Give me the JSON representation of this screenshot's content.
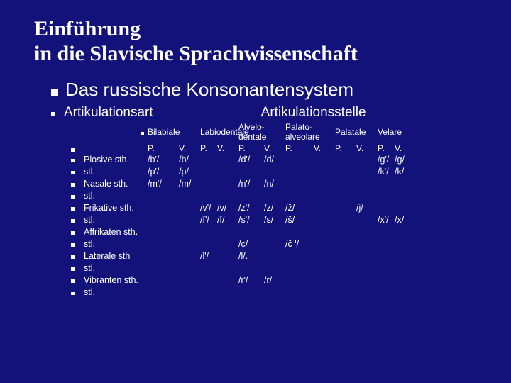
{
  "title_line1": "Einführung",
  "title_line2": "in die Slavische Sprachwissenschaft",
  "heading": "Das russische Konsonantensystem",
  "sub_label1": "Artikulationsart",
  "sub_label2": "Artikulationsstelle",
  "columns": {
    "bilabiale": "Bilabiale",
    "labiodentale": "Labiodentale",
    "alveodentale": "Alvelo-dentale",
    "palatoalveolare": "Palato-alveolare",
    "palatale": "Palatale",
    "velare": "Velare"
  },
  "pv": {
    "p": "P.",
    "v": "V."
  },
  "rows": [
    {
      "art": "Plosive",
      "voice": "sth.",
      "c": {
        "bil_p": "/b'/",
        "bil_v": "/b/",
        "alv_p": "/d'/",
        "alv_v": "/d/",
        "vel_p": "/g'/",
        "vel_v": "/g/"
      }
    },
    {
      "art": "",
      "voice": "stl.",
      "c": {
        "bil_p": "/p'/",
        "bil_v": "/p/",
        "vel_p": "/k'/",
        "vel_v": "/k/"
      }
    },
    {
      "art": "Nasale",
      "voice": "sth.",
      "c": {
        "bil_p": "/m'/",
        "bil_v": "/m/",
        "alv_p": "/n'/",
        "alv_v": "/n/"
      }
    },
    {
      "art": "",
      "voice": "stl.",
      "c": {}
    },
    {
      "art": "Frikative",
      "voice": "sth.",
      "c": {
        "lab_p": "/v'/",
        "lab_v": "/v/",
        "alv_p": "/z'/",
        "alv_v": "/z/",
        "pa_p": "/ž/",
        "pal_v": "/j/"
      }
    },
    {
      "art": "",
      "voice": "stl.",
      "c": {
        "lab_p": "/f'/",
        "lab_v": "/f/",
        "alv_p": "/s'/",
        "alv_v": "/s/",
        "pa_p": "/š/",
        "vel_p": "/x'/",
        "vel_v": "/x/"
      }
    },
    {
      "art": "Affrikaten",
      "voice": "sth.",
      "c": {}
    },
    {
      "art": "",
      "voice": "stl.",
      "c": {
        "alv_p": "/c/",
        "pa_p": "/č '/"
      }
    },
    {
      "art": "Laterale",
      "voice": "sth",
      "c": {
        "lab_p": "/l'/",
        "alv_p": "/l/."
      }
    },
    {
      "art": "",
      "voice": "stl.",
      "c": {}
    },
    {
      "art": "Vibranten",
      "voice": "sth.",
      "c": {
        "alv_p": "/r'/",
        "alv_v": "/r/"
      }
    },
    {
      "art": "",
      "voice": "stl.",
      "c": {}
    }
  ],
  "colors": {
    "background": "#12127a",
    "text": "#ffffff"
  }
}
